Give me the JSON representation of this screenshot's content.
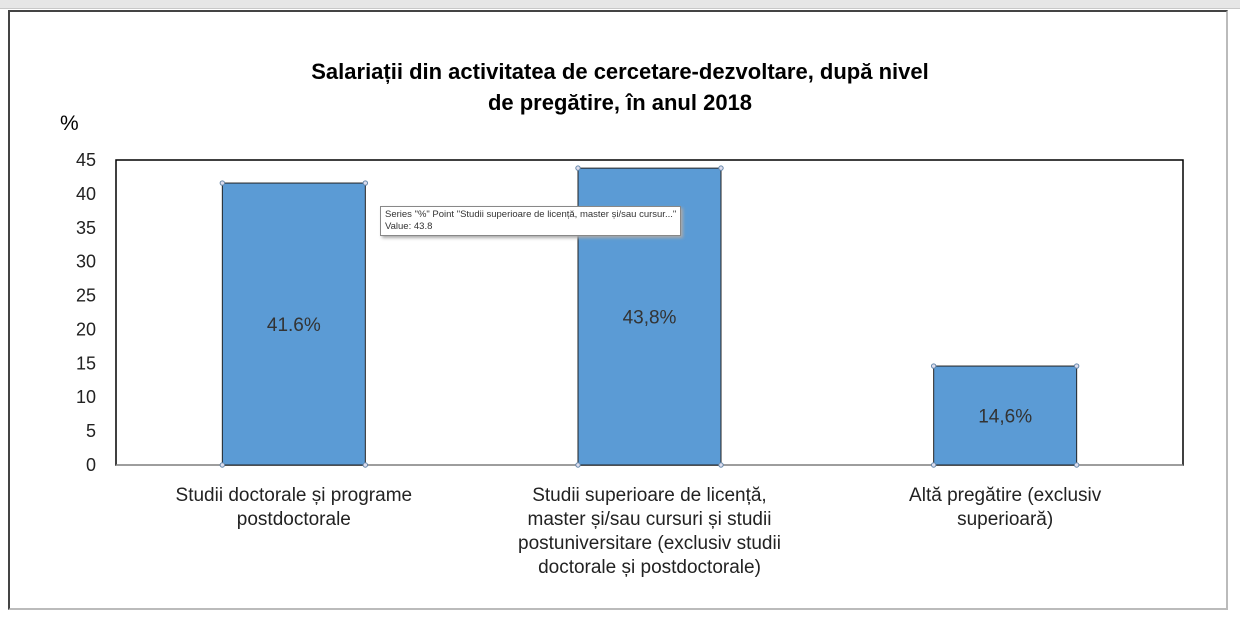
{
  "chart_data": {
    "type": "bar",
    "title": "Salariații din activitatea de cercetare-dezvoltare, după nivel de pregătire, în anul 2018",
    "title_lines": [
      "Salariații din activitatea de cercetare-dezvoltare, după nivel",
      "de pregătire, în anul 2018"
    ],
    "ylabel": "%",
    "ylim": [
      0,
      45
    ],
    "yticks": [
      0,
      5,
      10,
      15,
      20,
      25,
      30,
      35,
      40,
      45
    ],
    "categories": [
      [
        "Studii doctorale și programe",
        "postdoctorale"
      ],
      [
        "Studii superioare de licență,",
        "master și/sau cursuri și studii",
        "postuniversitare (exclusiv studii",
        "doctorale și postdoctorale)"
      ],
      [
        "Altă pregătire (exclusiv",
        "superioară)"
      ]
    ],
    "values": [
      41.6,
      43.8,
      14.6
    ],
    "data_labels": [
      "41.6%",
      "43,8%",
      "14,6%"
    ],
    "bar_color": "#5b9bd5",
    "grid": false
  },
  "tooltip": {
    "line1": "Series \"%\" Point \"Studii superioare de licență, master și/sau cursur...\"",
    "line2": "Value: 43.8"
  }
}
